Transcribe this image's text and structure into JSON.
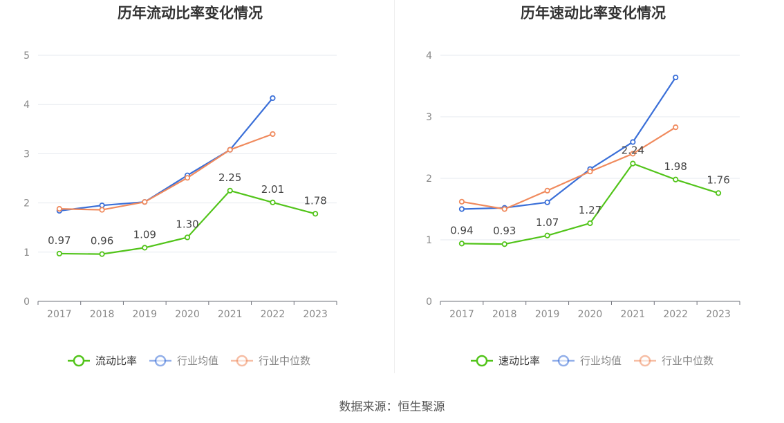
{
  "source_label": "数据来源：恒生聚源",
  "colors": {
    "primary_green": "#52c41a",
    "industry_avg_blue": "#3a6fd8",
    "industry_median_orange": "#f08a5d"
  },
  "chart_data": [
    {
      "type": "line",
      "title": "历年流动比率变化情况",
      "categories": [
        "2017",
        "2018",
        "2019",
        "2020",
        "2021",
        "2022",
        "2023"
      ],
      "ylim": [
        0,
        5
      ],
      "yticks": [
        0,
        1,
        2,
        3,
        4,
        5
      ],
      "grid": true,
      "legend_position": "bottom",
      "series": [
        {
          "name": "流动比率",
          "color": "#52c41a",
          "values": [
            0.97,
            0.96,
            1.09,
            1.3,
            2.25,
            2.01,
            1.78
          ],
          "labels": [
            "0.97",
            "0.96",
            "1.09",
            "1.30",
            "2.25",
            "2.01",
            "1.78"
          ]
        },
        {
          "name": "行业均值",
          "color": "#3a6fd8",
          "values": [
            1.84,
            1.95,
            2.02,
            2.56,
            3.08,
            4.13,
            null
          ]
        },
        {
          "name": "行业中位数",
          "color": "#f08a5d",
          "values": [
            1.88,
            1.86,
            2.02,
            2.51,
            3.08,
            3.4,
            null
          ]
        }
      ]
    },
    {
      "type": "line",
      "title": "历年速动比率变化情况",
      "categories": [
        "2017",
        "2018",
        "2019",
        "2020",
        "2021",
        "2022",
        "2023"
      ],
      "ylim": [
        0,
        4
      ],
      "yticks": [
        0,
        1,
        2,
        3,
        4
      ],
      "grid": true,
      "legend_position": "bottom",
      "series": [
        {
          "name": "速动比率",
          "color": "#52c41a",
          "values": [
            0.94,
            0.93,
            1.07,
            1.27,
            2.24,
            1.98,
            1.76
          ],
          "labels": [
            "0.94",
            "0.93",
            "1.07",
            "1.27",
            "2.24",
            "1.98",
            "1.76"
          ]
        },
        {
          "name": "行业均值",
          "color": "#3a6fd8",
          "values": [
            1.5,
            1.52,
            1.61,
            2.15,
            2.59,
            3.64,
            null
          ]
        },
        {
          "name": "行业中位数",
          "color": "#f08a5d",
          "values": [
            1.62,
            1.5,
            1.8,
            2.11,
            2.4,
            2.83,
            null
          ]
        }
      ]
    }
  ]
}
